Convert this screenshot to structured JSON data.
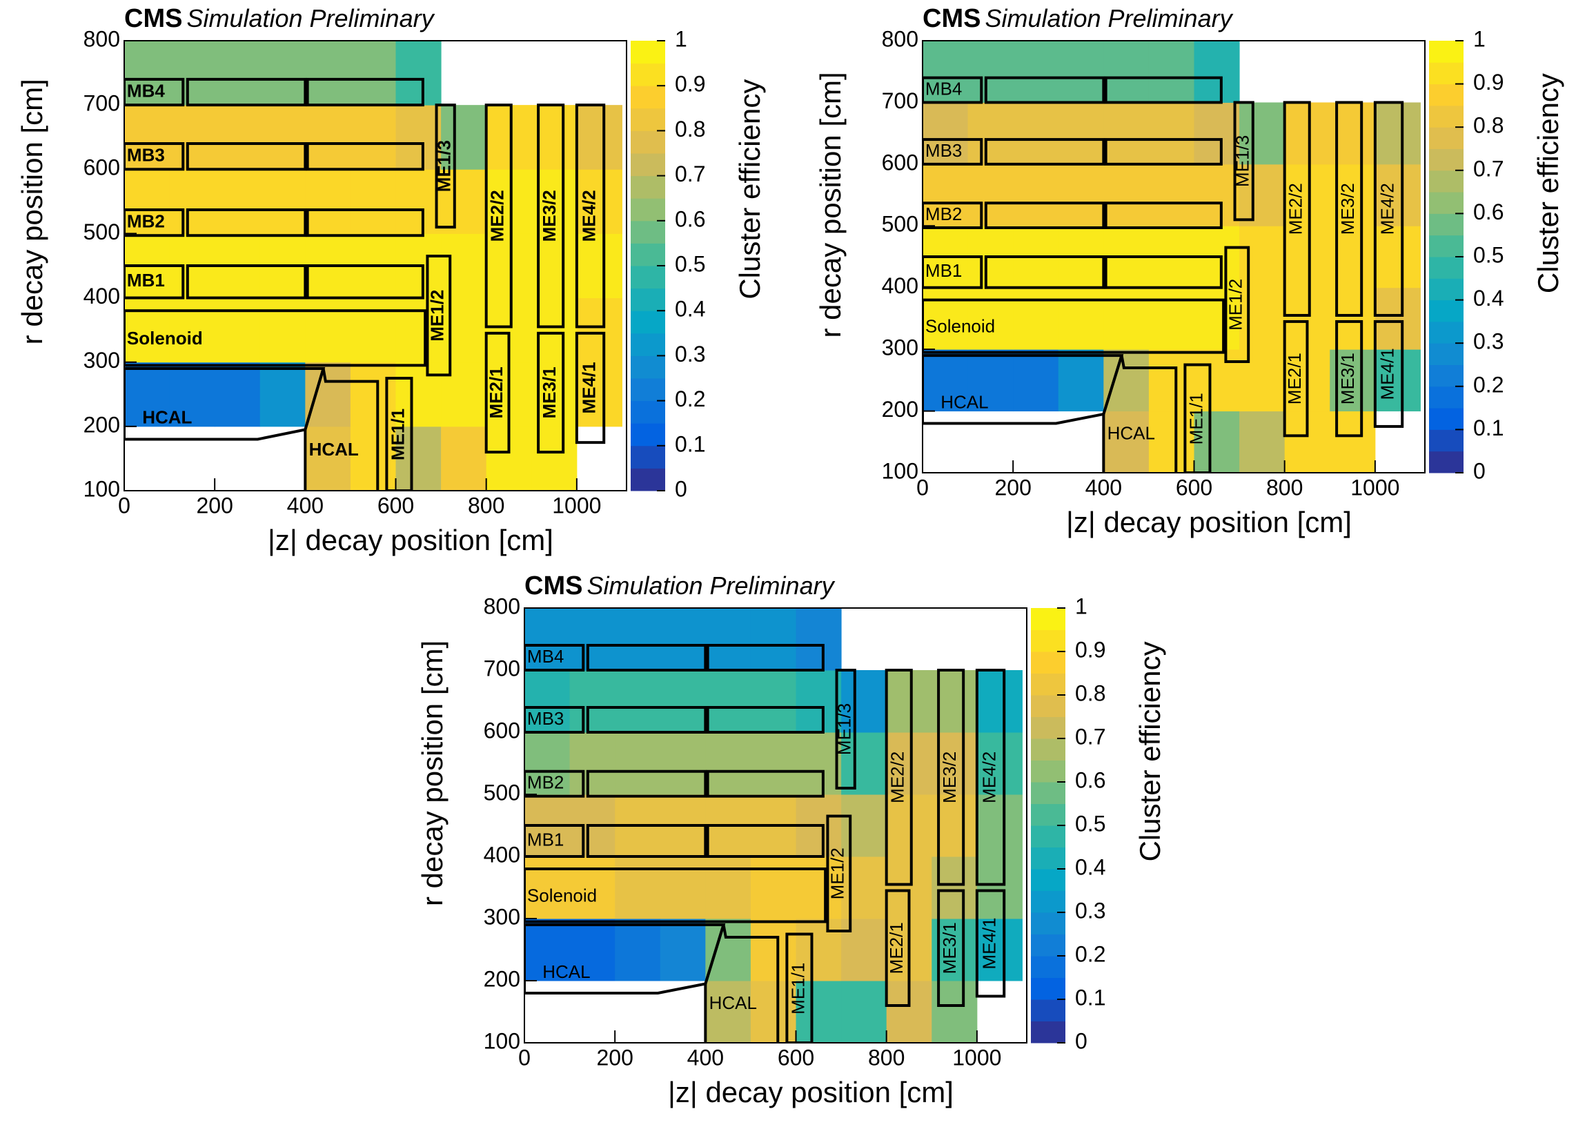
{
  "chart_data": [
    {
      "type": "heatmap",
      "title": "CMS",
      "subtitle": "Simulation Preliminary",
      "xlabel": "|z| decay position [cm]",
      "ylabel": "r decay position [cm]",
      "zlabel": "Cluster efficiency",
      "xlim": [
        0,
        1110
      ],
      "ylim": [
        100,
        800
      ],
      "zlim": [
        0,
        1
      ],
      "xticks": [
        0,
        200,
        400,
        600,
        800,
        1000
      ],
      "yticks": [
        100,
        200,
        300,
        400,
        500,
        600,
        700,
        800
      ],
      "zticks": [
        0,
        0.1,
        0.2,
        0.3,
        0.4,
        0.5,
        0.6,
        0.7,
        0.8,
        0.9,
        1
      ],
      "colormap": [
        "#352a87",
        "#0363e1",
        "#1485d4",
        "#06a7c6",
        "#38b99e",
        "#92bf73",
        "#d9ba56",
        "#fcce2e",
        "#f9fb0e"
      ],
      "xbins": [
        0,
        100,
        200,
        300,
        400,
        500,
        600,
        700,
        800,
        900,
        1000,
        1100
      ],
      "ybins": [
        100,
        200,
        300,
        400,
        500,
        600,
        700,
        800
      ],
      "values": [
        [
          null,
          null,
          null,
          null,
          0.8,
          0.9,
          0.7,
          0.85,
          0.95,
          0.95,
          null
        ],
        [
          0.2,
          0.2,
          0.2,
          0.3,
          0.75,
          0.9,
          0.95,
          0.95,
          0.95,
          0.95,
          0.9
        ],
        [
          0.95,
          0.95,
          0.95,
          0.95,
          0.95,
          0.95,
          0.95,
          0.95,
          0.95,
          0.95,
          0.9
        ],
        [
          0.95,
          0.95,
          0.95,
          0.95,
          0.95,
          0.95,
          0.95,
          0.95,
          0.95,
          0.95,
          0.95
        ],
        [
          0.9,
          0.9,
          0.9,
          0.9,
          0.9,
          0.9,
          0.9,
          0.9,
          0.95,
          0.95,
          0.9
        ],
        [
          0.85,
          0.85,
          0.85,
          0.85,
          0.85,
          0.85,
          0.8,
          0.6,
          0.9,
          0.9,
          0.8
        ],
        [
          0.6,
          0.6,
          0.6,
          0.6,
          0.6,
          0.6,
          0.5,
          null,
          null,
          null,
          null
        ]
      ],
      "annotations": [
        "MB4",
        "MB3",
        "MB2",
        "MB1",
        "Solenoid",
        "HCAL",
        "HCAL",
        "ME1/1",
        "ME1/2",
        "ME1/3",
        "ME2/1",
        "ME2/2",
        "ME3/1",
        "ME3/2",
        "ME4/1",
        "ME4/2"
      ],
      "annotation_bold": true
    },
    {
      "type": "heatmap",
      "title": "CMS",
      "subtitle": "Simulation Preliminary",
      "xlabel": "|z| decay position [cm]",
      "ylabel": "r decay position [cm]",
      "zlabel": "Cluster efficiency",
      "xlim": [
        0,
        1110
      ],
      "ylim": [
        100,
        800
      ],
      "zlim": [
        0,
        1
      ],
      "xticks": [
        0,
        200,
        400,
        600,
        800,
        1000
      ],
      "yticks": [
        100,
        200,
        300,
        400,
        500,
        600,
        700,
        800
      ],
      "zticks": [
        0,
        0.1,
        0.2,
        0.3,
        0.4,
        0.5,
        0.6,
        0.7,
        0.8,
        0.9,
        1
      ],
      "colormap": [
        "#352a87",
        "#0363e1",
        "#1485d4",
        "#06a7c6",
        "#38b99e",
        "#92bf73",
        "#d9ba56",
        "#fcce2e",
        "#f9fb0e"
      ],
      "xbins": [
        0,
        100,
        200,
        300,
        400,
        500,
        600,
        700,
        800,
        900,
        1000,
        1100
      ],
      "ybins": [
        100,
        200,
        300,
        400,
        500,
        600,
        700,
        800
      ],
      "values": [
        [
          null,
          null,
          null,
          null,
          0.75,
          0.9,
          0.6,
          0.7,
          0.9,
          0.9,
          null
        ],
        [
          0.2,
          0.2,
          0.2,
          0.3,
          0.7,
          0.9,
          0.9,
          0.9,
          0.9,
          0.6,
          0.5
        ],
        [
          0.95,
          0.95,
          0.95,
          0.95,
          0.95,
          0.95,
          0.95,
          0.9,
          0.9,
          0.9,
          0.8
        ],
        [
          0.95,
          0.95,
          0.95,
          0.95,
          0.95,
          0.95,
          0.95,
          0.9,
          0.9,
          0.9,
          0.9
        ],
        [
          0.85,
          0.85,
          0.85,
          0.85,
          0.85,
          0.85,
          0.85,
          0.8,
          0.9,
          0.9,
          0.8
        ],
        [
          0.75,
          0.8,
          0.8,
          0.8,
          0.8,
          0.8,
          0.75,
          0.6,
          0.85,
          0.85,
          0.7
        ],
        [
          0.55,
          0.55,
          0.55,
          0.55,
          0.55,
          0.55,
          0.45,
          null,
          null,
          null,
          null
        ]
      ],
      "annotations": [
        "MB4",
        "MB3",
        "MB2",
        "MB1",
        "Solenoid",
        "HCAL",
        "HCAL",
        "ME1/1",
        "ME1/2",
        "ME1/3",
        "ME2/1",
        "ME2/2",
        "ME3/1",
        "ME3/2",
        "ME4/1",
        "ME4/2"
      ],
      "annotation_bold": false
    },
    {
      "type": "heatmap",
      "title": "CMS",
      "subtitle": "Simulation Preliminary",
      "xlabel": "|z| decay position [cm]",
      "ylabel": "r decay position [cm]",
      "zlabel": "Cluster efficiency",
      "xlim": [
        0,
        1110
      ],
      "ylim": [
        100,
        800
      ],
      "zlim": [
        0,
        1
      ],
      "xticks": [
        0,
        200,
        400,
        600,
        800,
        1000
      ],
      "yticks": [
        100,
        200,
        300,
        400,
        500,
        600,
        700,
        800
      ],
      "zticks": [
        0,
        0.1,
        0.2,
        0.3,
        0.4,
        0.5,
        0.6,
        0.7,
        0.8,
        0.9,
        1
      ],
      "colormap": [
        "#352a87",
        "#0363e1",
        "#1485d4",
        "#06a7c6",
        "#38b99e",
        "#92bf73",
        "#d9ba56",
        "#fcce2e",
        "#f9fb0e"
      ],
      "xbins": [
        0,
        100,
        200,
        300,
        400,
        500,
        600,
        700,
        800,
        900,
        1000,
        1100
      ],
      "ybins": [
        100,
        200,
        300,
        400,
        500,
        600,
        700,
        800
      ],
      "values": [
        [
          null,
          null,
          null,
          null,
          0.7,
          0.8,
          0.5,
          0.5,
          0.75,
          0.6,
          null
        ],
        [
          0.15,
          0.15,
          0.2,
          0.25,
          0.6,
          0.85,
          0.8,
          0.75,
          0.8,
          0.5,
          0.4
        ],
        [
          0.85,
          0.85,
          0.8,
          0.8,
          0.8,
          0.85,
          0.85,
          0.8,
          0.8,
          0.7,
          0.6
        ],
        [
          0.75,
          0.75,
          0.8,
          0.8,
          0.8,
          0.8,
          0.75,
          0.7,
          0.8,
          0.8,
          0.6
        ],
        [
          0.6,
          0.65,
          0.65,
          0.65,
          0.65,
          0.65,
          0.65,
          0.5,
          0.75,
          0.75,
          0.5
        ],
        [
          0.45,
          0.5,
          0.5,
          0.5,
          0.5,
          0.5,
          0.45,
          0.3,
          0.65,
          0.65,
          0.4
        ],
        [
          0.3,
          0.3,
          0.3,
          0.3,
          0.3,
          0.3,
          0.25,
          null,
          null,
          null,
          null
        ]
      ],
      "annotations": [
        "MB4",
        "MB3",
        "MB2",
        "MB1",
        "Solenoid",
        "HCAL",
        "HCAL",
        "ME1/1",
        "ME1/2",
        "ME1/3",
        "ME2/1",
        "ME2/2",
        "ME3/1",
        "ME3/2",
        "ME4/1",
        "ME4/2"
      ],
      "annotation_bold": false
    }
  ]
}
